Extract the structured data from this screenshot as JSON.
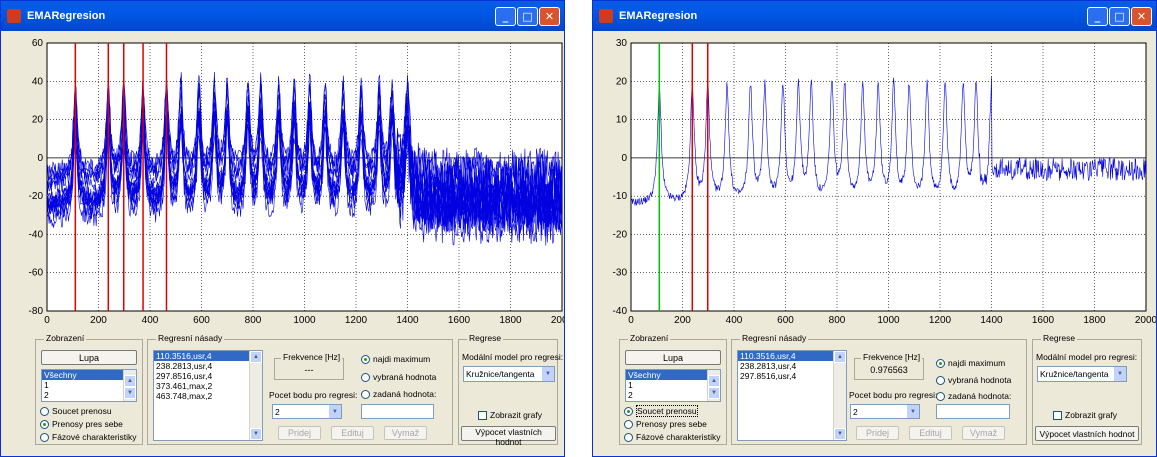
{
  "windows": [
    {
      "title": "EMARegresion",
      "plot": {
        "y_ticks": [
          "60",
          "40",
          "20",
          "0",
          "-20",
          "-40",
          "-60",
          "-80"
        ],
        "x_ticks": [
          "0",
          "200",
          "400",
          "600",
          "800",
          "1000",
          "1200",
          "1400",
          "1600",
          "1800",
          "2000"
        ],
        "xlim": [
          0,
          2000
        ],
        "ylim": [
          -80,
          60
        ],
        "marker_lines": [
          {
            "x": 110,
            "color": "#e00000"
          },
          {
            "x": 238,
            "color": "#e00000"
          },
          {
            "x": 298,
            "color": "#e00000"
          },
          {
            "x": 373,
            "color": "#e00000"
          },
          {
            "x": 464,
            "color": "#e00000"
          }
        ],
        "trace_color": "#0000e0"
      },
      "zobrazeni": {
        "title": "Zobrazení",
        "lupa": "Lupa",
        "list_items": [
          "Všechny",
          "1",
          "2"
        ],
        "radios": [
          {
            "label": "Soucet prenosu",
            "on": false
          },
          {
            "label": "Prenosy pres sebe",
            "on": true
          },
          {
            "label": "Fázové charakteristiky",
            "on": false
          }
        ]
      },
      "sady": {
        "title": "Regresní násady",
        "items": [
          "110.3516,usr,4",
          "238.2813,usr,4",
          "297.8516,usr,4",
          "373.461,max,2",
          "463.748,max,2"
        ],
        "frekvence_label": "Frekvence [Hz]",
        "frekvence_value": "---",
        "pocet_label": "Pocet bodu pro regresi:",
        "pocet_value": "2",
        "radios": [
          {
            "label": "najdi maximum",
            "on": true
          },
          {
            "label": "vybraná hodnota",
            "on": false
          },
          {
            "label": "zadaná hodnota:",
            "on": false
          }
        ],
        "btn_pridej": "Pridej",
        "btn_edituj": "Edituj",
        "btn_vymaz": "Vymaž"
      },
      "regrese": {
        "title": "Regrese",
        "model_label": "Modální model pro regresi:",
        "model_value": "Kružnice/tangenta",
        "zobrazit": "Zobrazit grafy",
        "vypocet": "Výpocet vlastních hodnot"
      }
    },
    {
      "title": "EMARegresion",
      "plot": {
        "y_ticks": [
          "30",
          "20",
          "10",
          "0",
          "-10",
          "-20",
          "-30",
          "-40"
        ],
        "x_ticks": [
          "0",
          "200",
          "400",
          "600",
          "800",
          "1000",
          "1200",
          "1400",
          "1600",
          "1800",
          "2000"
        ],
        "xlim": [
          0,
          2000
        ],
        "ylim": [
          -40,
          30
        ],
        "marker_lines": [
          {
            "x": 110,
            "color": "#00c000"
          },
          {
            "x": 238,
            "color": "#e00000"
          },
          {
            "x": 298,
            "color": "#e00000"
          }
        ],
        "trace_color": "#0000e0"
      },
      "zobrazeni": {
        "title": "Zobrazení",
        "lupa": "Lupa",
        "list_items": [
          "Všechny",
          "1",
          "2"
        ],
        "radios": [
          {
            "label": "Soucet prenosu",
            "on": true
          },
          {
            "label": "Prenosy pres sebe",
            "on": false
          },
          {
            "label": "Fázové charakteristiky",
            "on": false
          }
        ]
      },
      "sady": {
        "title": "Regresní násady",
        "items": [
          "110.3516,usr,4",
          "238.2813,usr,4",
          "297.8516,usr,4"
        ],
        "frekvence_label": "Frekvence [Hz]",
        "frekvence_value": "0.976563",
        "pocet_label": "Pocet bodu pro regresi:",
        "pocet_value": "2",
        "radios": [
          {
            "label": "najdi maximum",
            "on": true
          },
          {
            "label": "vybraná hodnota",
            "on": false
          },
          {
            "label": "zadaná hodnota:",
            "on": false
          }
        ],
        "btn_pridej": "Pridej",
        "btn_edituj": "Edituj",
        "btn_vymaz": "Vymaž"
      },
      "regrese": {
        "title": "Regrese",
        "model_label": "Modální model pro regresi:",
        "model_value": "Kružnice/tangenta",
        "zobrazit": "Zobrazit grafy",
        "vypocet": "Výpocet vlastních hodnot"
      }
    }
  ]
}
